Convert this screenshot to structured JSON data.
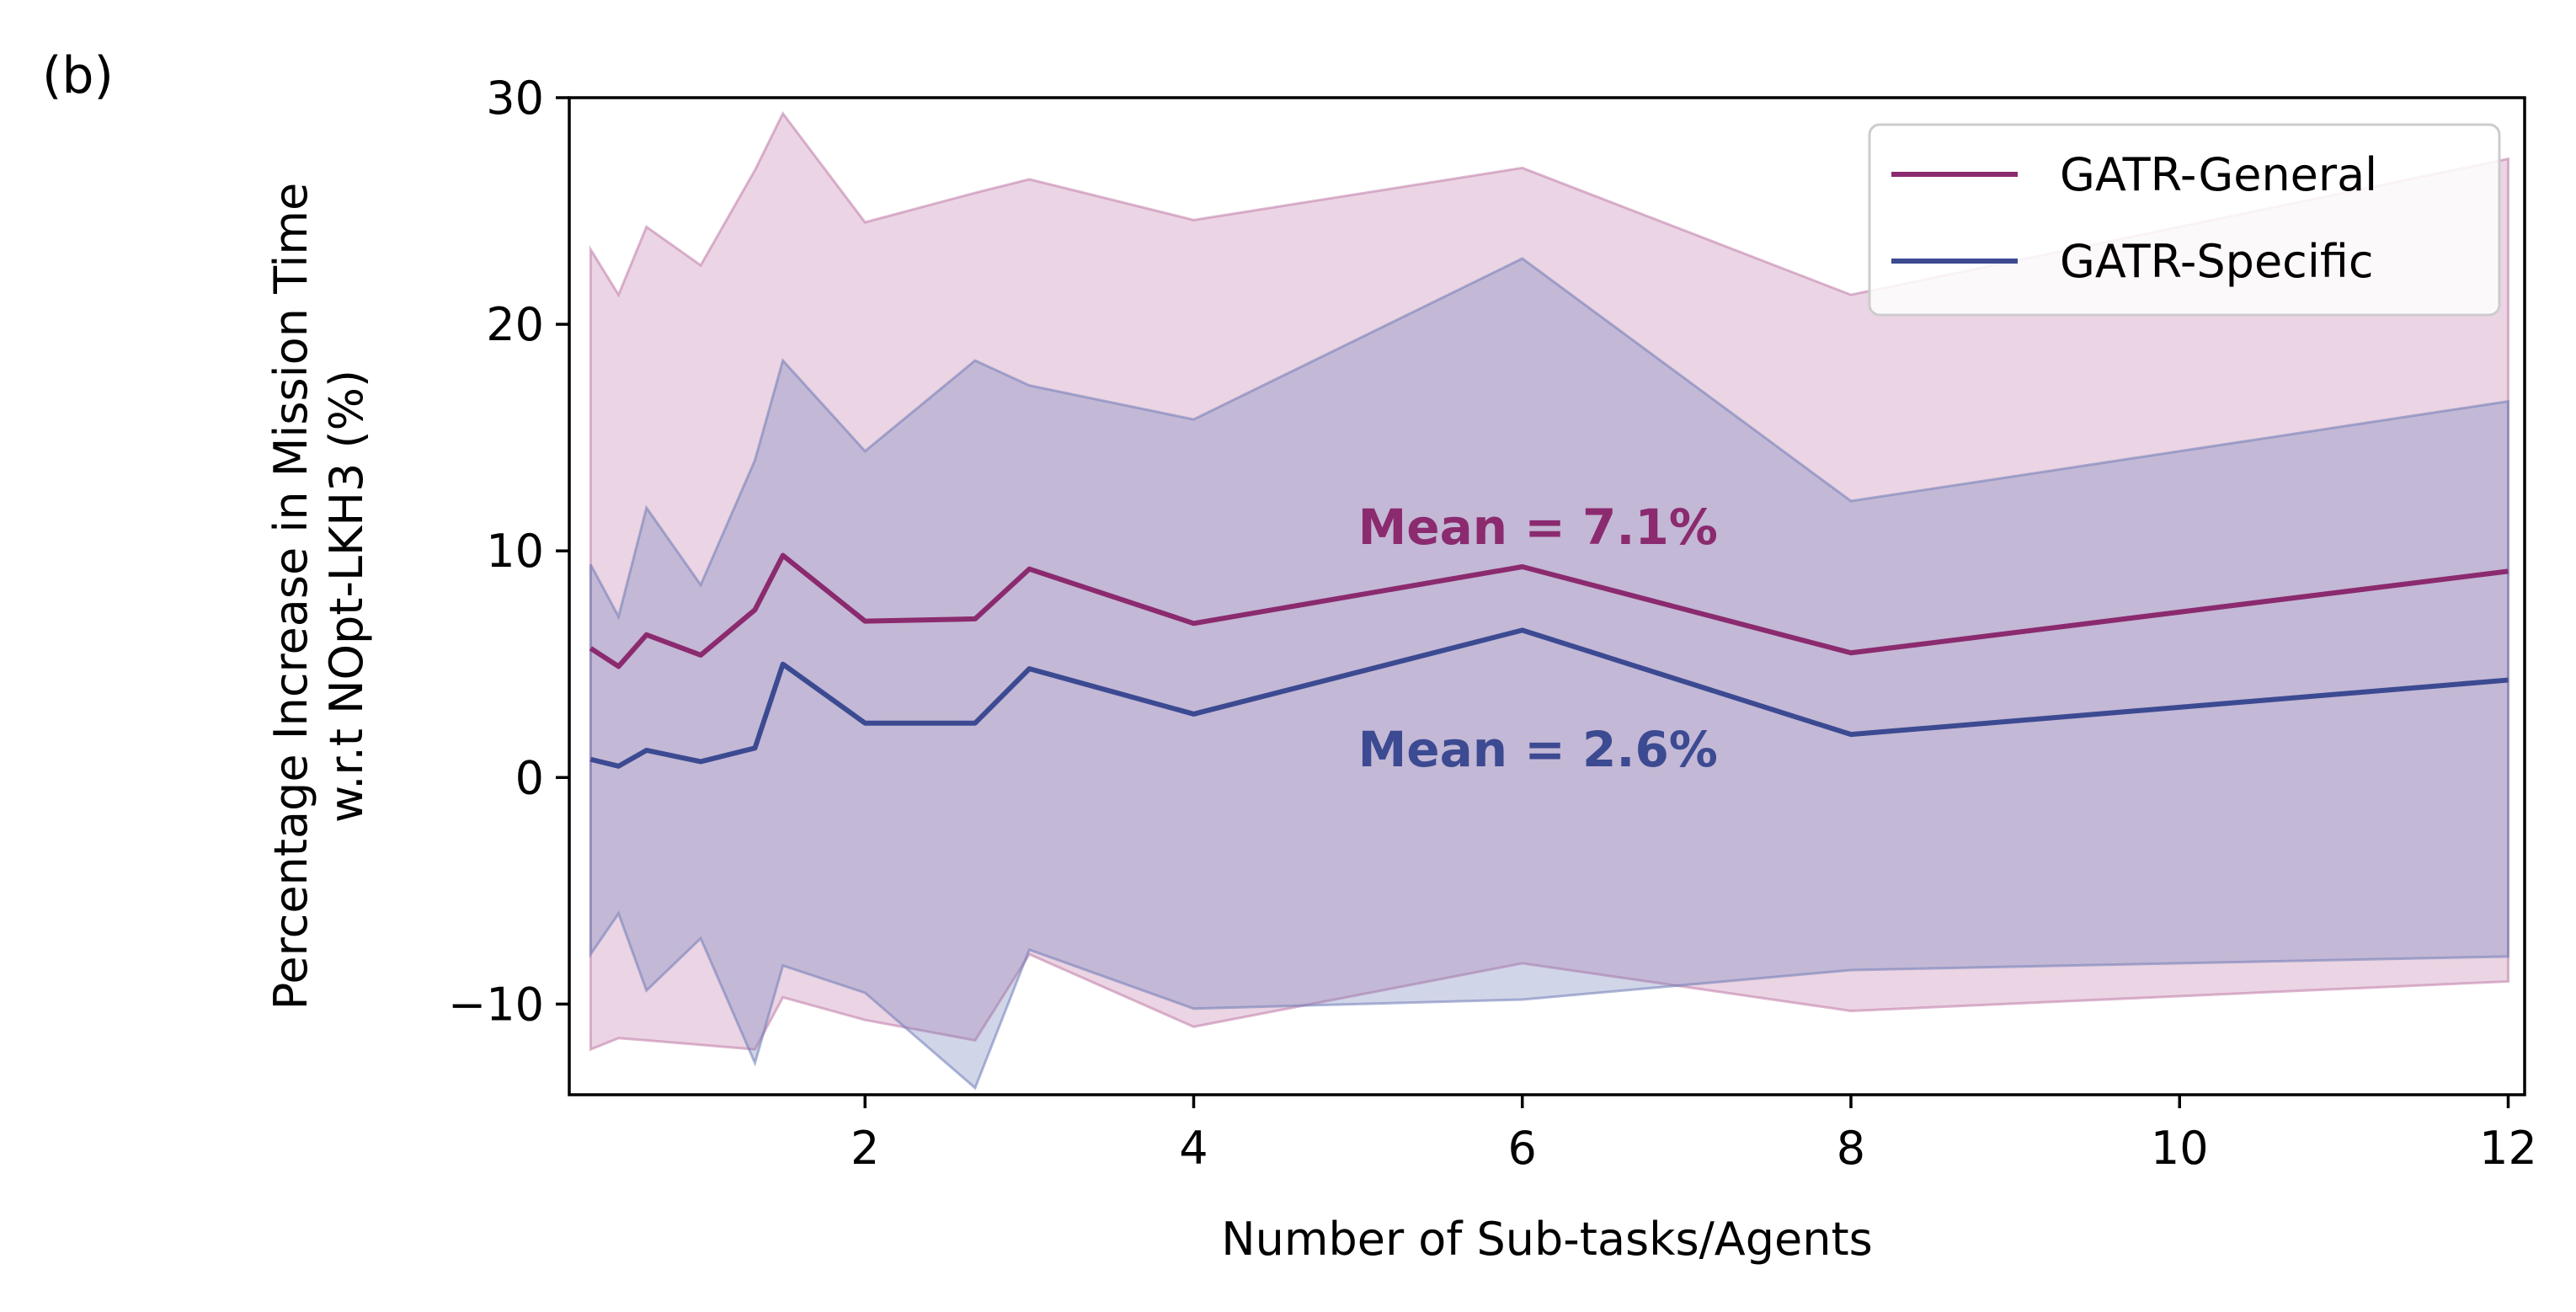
{
  "panel_label": "(b)",
  "colors": {
    "general": "#8b2a6f",
    "specific": "#3c4a92",
    "general_band": "#c07aa8",
    "specific_band": "#6f7cb8"
  },
  "chart_data": {
    "type": "line",
    "title": "",
    "xlabel": "Number of Sub-tasks/Agents",
    "ylabel": [
      "Percentage Increase in Mission Time",
      "w.r.t NOpt-LKH3 (%)"
    ],
    "xlim": [
      0.2,
      12.1
    ],
    "ylim": [
      -14,
      30
    ],
    "xticks": [
      2,
      4,
      6,
      8,
      10,
      12
    ],
    "yticks": [
      -10,
      0,
      10,
      20,
      30
    ],
    "ytick_labels": [
      "−10",
      "0",
      "10",
      "20",
      "30"
    ],
    "x": [
      0.33,
      0.5,
      0.67,
      1.0,
      1.33,
      1.5,
      2.0,
      2.67,
      3.0,
      4.0,
      6.0,
      8.0,
      12.0
    ],
    "legend_position": "upper right",
    "series": [
      {
        "name": "GATR-General",
        "color_key": "general",
        "mean_label": "Mean = 7.1%",
        "mean_label_pos": [
          5.0,
          10.3
        ],
        "values": [
          5.7,
          4.9,
          6.3,
          5.4,
          7.4,
          9.8,
          6.9,
          7.0,
          9.2,
          6.8,
          9.3,
          5.5,
          9.1
        ],
        "upper": [
          23.3,
          21.3,
          24.3,
          22.6,
          26.8,
          29.3,
          24.5,
          25.8,
          26.4,
          24.6,
          26.9,
          21.3,
          27.3
        ],
        "lower": [
          -12.0,
          -11.5,
          -11.6,
          -11.8,
          -12.0,
          -9.7,
          -10.7,
          -11.6,
          -7.8,
          -11.0,
          -8.2,
          -10.3,
          -9.0
        ]
      },
      {
        "name": "GATR-Specific",
        "color_key": "specific",
        "mean_label": "Mean = 2.6%",
        "mean_label_pos": [
          5.0,
          0.5
        ],
        "values": [
          0.8,
          0.5,
          1.2,
          0.7,
          1.3,
          5.0,
          2.4,
          2.4,
          4.8,
          2.8,
          6.5,
          1.9,
          4.3
        ],
        "upper": [
          9.4,
          7.1,
          11.9,
          8.5,
          14.0,
          18.4,
          14.4,
          18.4,
          17.3,
          15.8,
          22.9,
          12.2,
          16.6
        ],
        "lower": [
          -7.8,
          -6.0,
          -9.4,
          -7.1,
          -12.6,
          -8.3,
          -9.5,
          -13.7,
          -7.6,
          -10.2,
          -9.8,
          -8.5,
          -7.9
        ]
      }
    ]
  }
}
